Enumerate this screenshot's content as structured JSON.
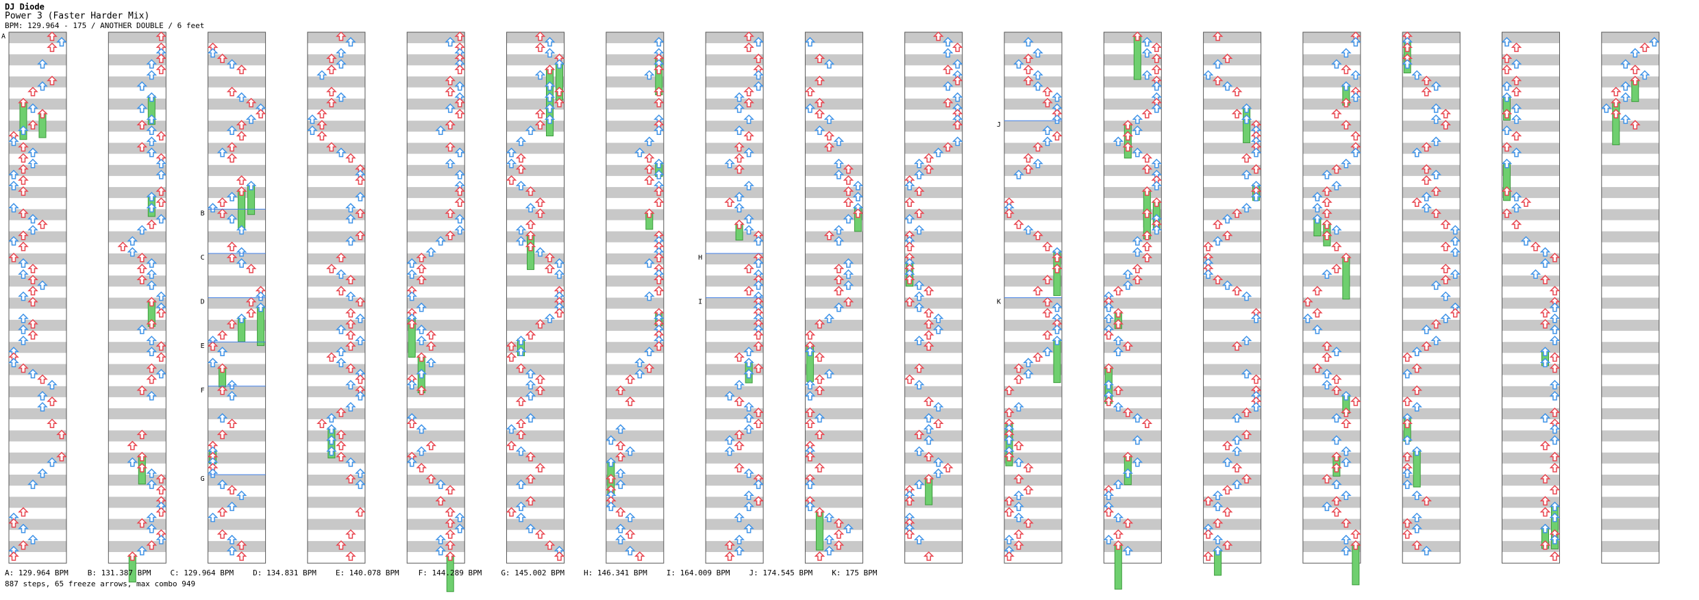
{
  "song": {
    "artist": "DJ Diode",
    "title": "Power 3 (Faster Harder Mix)",
    "meta": "BPM: 129.964 - 175 / ANOTHER DOUBLE / 6 feet"
  },
  "bpm_legend": [
    "A: 129.964 BPM",
    "B: 131.387 BPM",
    "C: 129.964 BPM",
    "D: 134.831 BPM",
    "E: 140.078 BPM",
    "F: 144.289 BPM",
    "G: 145.002 BPM",
    "H: 146.341 BPM",
    "I: 164.009 BPM",
    "J: 174.545 BPM",
    "K: 175 BPM"
  ],
  "summary": "887 steps, 65 freeze arrows, max combo 949",
  "chart_data": {
    "type": "step-chart",
    "column_count": 17,
    "measures_per_column": 12,
    "bpm_change_markers": [
      {
        "label": "A",
        "column": 1,
        "measure": 0
      },
      {
        "label": "B",
        "column": 3,
        "measure": 4
      },
      {
        "label": "C",
        "column": 3,
        "measure": 5
      },
      {
        "label": "D",
        "column": 3,
        "measure": 6
      },
      {
        "label": "E",
        "column": 3,
        "measure": 7
      },
      {
        "label": "F",
        "column": 3,
        "measure": 8
      },
      {
        "label": "G",
        "column": 3,
        "measure": 10
      },
      {
        "label": "H",
        "column": 8,
        "measure": 5
      },
      {
        "label": "I",
        "column": 8,
        "measure": 6
      },
      {
        "label": "J",
        "column": 11,
        "measure": 2
      },
      {
        "label": "K",
        "column": 11,
        "measure": 6
      }
    ],
    "colors": {
      "quarter_arrow": "#e8454f",
      "eighth_arrow": "#3f93e8",
      "sixteenth_arrow": "#cc44cc",
      "freeze": "#6fcf6f",
      "band_dark": "#c8c8c8",
      "band_light": "#ffffff",
      "marker_line": "#3f7fe8"
    }
  }
}
